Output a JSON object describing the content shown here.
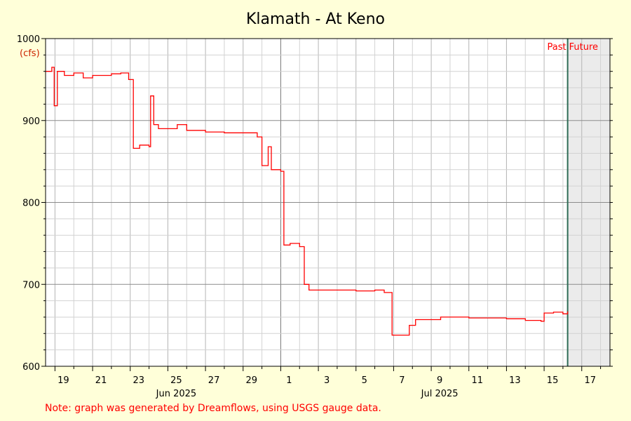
{
  "chart_data": {
    "type": "line",
    "title": "Klamath - At Keno",
    "ylabel": "(cfs)",
    "xlabel": "",
    "ylim": [
      600,
      1000
    ],
    "yticks": [
      600,
      700,
      800,
      900,
      1000
    ],
    "xlim": [
      "2025-06-18 12:00",
      "2025-07-18 12:00"
    ],
    "x_tick_labels": [
      "19",
      "21",
      "23",
      "25",
      "27",
      "29",
      "1",
      "3",
      "5",
      "7",
      "9",
      "11",
      "13",
      "15",
      "17"
    ],
    "month_labels": [
      "Jun 2025",
      "Jul 2025"
    ],
    "grid": true,
    "past_label": "Past",
    "future_label": "Future",
    "now": "2025-07-16 06:00",
    "colors": {
      "series": "#FF0000",
      "now_line": "#2E6B55",
      "future_shade": "#EBEBEB",
      "plot_bg": "#FFFFFF",
      "page_bg": "#FFFFD9",
      "note": "#FF0000",
      "cfs_label": "#CC2200"
    },
    "series": [
      {
        "values": [
          [
            "2025-06-18 12:00",
            960
          ],
          [
            "2025-06-18 20:00",
            965
          ],
          [
            "2025-06-18 23:00",
            918
          ],
          [
            "2025-06-19 03:00",
            960
          ],
          [
            "2025-06-19 12:00",
            955
          ],
          [
            "2025-06-20 00:00",
            958
          ],
          [
            "2025-06-20 12:00",
            952
          ],
          [
            "2025-06-21 00:00",
            955
          ],
          [
            "2025-06-22 00:00",
            957
          ],
          [
            "2025-06-22 12:00",
            958
          ],
          [
            "2025-06-22 22:00",
            950
          ],
          [
            "2025-06-23 04:00",
            866
          ],
          [
            "2025-06-23 12:00",
            870
          ],
          [
            "2025-06-24 00:00",
            868
          ],
          [
            "2025-06-24 02:00",
            930
          ],
          [
            "2025-06-24 06:00",
            895
          ],
          [
            "2025-06-24 12:00",
            890
          ],
          [
            "2025-06-25 00:00",
            890
          ],
          [
            "2025-06-25 12:00",
            895
          ],
          [
            "2025-06-26 00:00",
            888
          ],
          [
            "2025-06-27 00:00",
            886
          ],
          [
            "2025-06-28 00:00",
            885
          ],
          [
            "2025-06-29 00:00",
            885
          ],
          [
            "2025-06-29 18:00",
            880
          ],
          [
            "2025-06-30 00:00",
            845
          ],
          [
            "2025-06-30 08:00",
            868
          ],
          [
            "2025-06-30 12:00",
            840
          ],
          [
            "2025-07-01 00:00",
            838
          ],
          [
            "2025-07-01 04:00",
            748
          ],
          [
            "2025-07-01 12:00",
            750
          ],
          [
            "2025-07-02 00:00",
            746
          ],
          [
            "2025-07-02 06:00",
            700
          ],
          [
            "2025-07-02 12:00",
            693
          ],
          [
            "2025-07-03 00:00",
            693
          ],
          [
            "2025-07-04 00:00",
            693
          ],
          [
            "2025-07-05 00:00",
            692
          ],
          [
            "2025-07-06 00:00",
            693
          ],
          [
            "2025-07-06 12:00",
            690
          ],
          [
            "2025-07-06 22:00",
            638
          ],
          [
            "2025-07-07 12:00",
            638
          ],
          [
            "2025-07-07 20:00",
            650
          ],
          [
            "2025-07-08 04:00",
            657
          ],
          [
            "2025-07-09 00:00",
            657
          ],
          [
            "2025-07-09 12:00",
            660
          ],
          [
            "2025-07-10 00:00",
            660
          ],
          [
            "2025-07-11 00:00",
            659
          ],
          [
            "2025-07-12 00:00",
            659
          ],
          [
            "2025-07-13 00:00",
            658
          ],
          [
            "2025-07-14 00:00",
            656
          ],
          [
            "2025-07-14 20:00",
            655
          ],
          [
            "2025-07-15 00:00",
            665
          ],
          [
            "2025-07-15 12:00",
            666
          ],
          [
            "2025-07-16 00:00",
            664
          ],
          [
            "2025-07-16 06:00",
            667
          ]
        ]
      }
    ]
  },
  "note": "Note: graph was generated by Dreamflows, using USGS gauge data."
}
